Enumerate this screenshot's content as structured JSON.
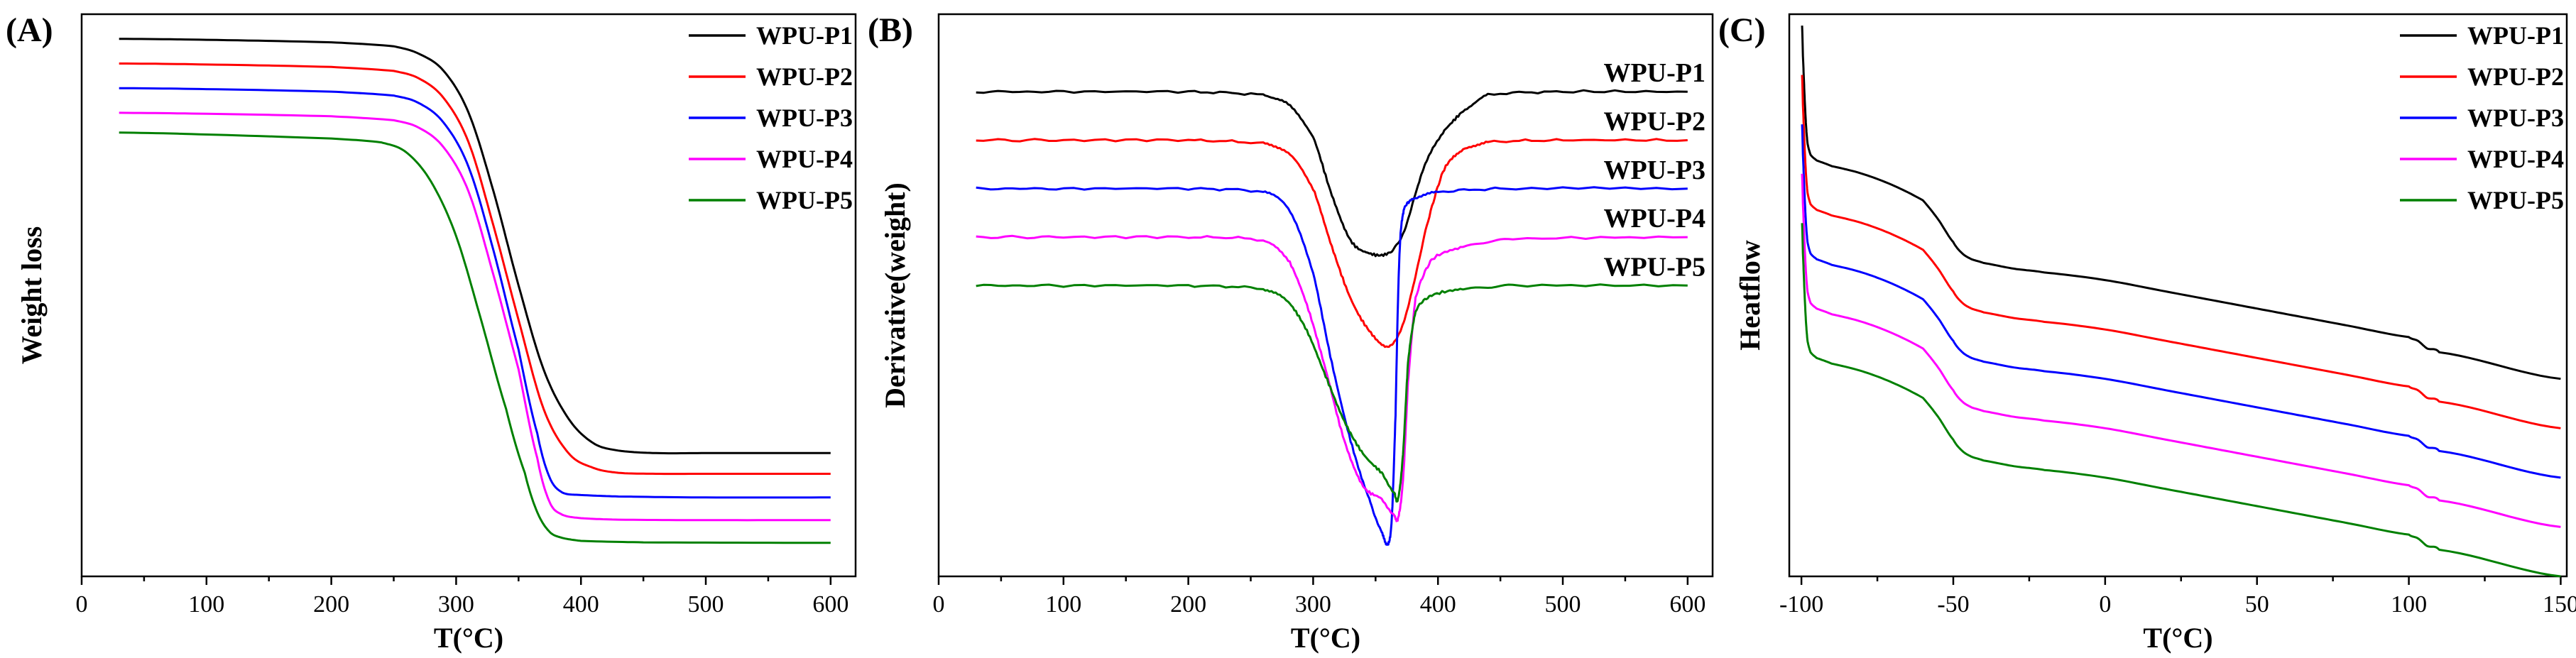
{
  "chart_data": [
    {
      "panel": "(A)",
      "type": "line",
      "xlabel": "T(°C)",
      "ylabel": "Weight loss",
      "xlim": [
        0,
        620
      ],
      "ylim": [
        -4,
        110
      ],
      "xticks": [
        0,
        100,
        200,
        300,
        400,
        500,
        600
      ],
      "xtick_labels": [
        "0",
        "100",
        "200",
        "300",
        "400",
        "500",
        "600"
      ],
      "legend": "top-right",
      "series": [
        {
          "name": "WPU-P1",
          "color": "#000000",
          "x": [
            30,
            100,
            200,
            250,
            270,
            290,
            310,
            330,
            350,
            370,
            390,
            410,
            430,
            460,
            500,
            600
          ],
          "y": [
            105,
            104.8,
            104.3,
            103.5,
            102,
            98.5,
            90,
            74,
            55,
            38,
            28,
            23,
            21.5,
            21,
            21,
            21
          ]
        },
        {
          "name": "WPU-P2",
          "color": "#ff0000",
          "x": [
            30,
            100,
            200,
            250,
            270,
            290,
            310,
            330,
            350,
            370,
            390,
            410,
            430,
            460,
            500,
            600
          ],
          "y": [
            100,
            99.8,
            99.3,
            98.5,
            97,
            93,
            84,
            67,
            48,
            30,
            21,
            18,
            17,
            16.8,
            16.8,
            16.8
          ]
        },
        {
          "name": "WPU-P3",
          "color": "#0000ff",
          "x": [
            30,
            100,
            200,
            250,
            270,
            290,
            310,
            330,
            350,
            365,
            375,
            385,
            400,
            430,
            500,
            600
          ],
          "y": [
            95,
            94.8,
            94.3,
            93.5,
            92,
            88,
            79,
            62,
            42,
            25,
            16,
            13,
            12.5,
            12.2,
            12,
            12
          ]
        },
        {
          "name": "WPU-P4",
          "color": "#ff00ff",
          "x": [
            30,
            100,
            200,
            250,
            270,
            290,
            310,
            330,
            350,
            365,
            375,
            385,
            400,
            430,
            500,
            600
          ],
          "y": [
            90,
            89.8,
            89.3,
            88.5,
            87,
            83,
            74,
            57,
            38,
            20,
            11,
            8.5,
            7.8,
            7.5,
            7.4,
            7.4
          ]
        },
        {
          "name": "WPU-P5",
          "color": "#008000",
          "x": [
            30,
            100,
            200,
            240,
            260,
            280,
            300,
            320,
            340,
            355,
            365,
            375,
            385,
            400,
            450,
            600
          ],
          "y": [
            86,
            85.6,
            84.8,
            84,
            82,
            76,
            65,
            48,
            30,
            17,
            9,
            5,
            3.8,
            3.2,
            2.9,
            2.8
          ]
        }
      ]
    },
    {
      "panel": "(B)",
      "type": "line",
      "xlabel": "T(°C)",
      "ylabel": "Derivative(weight)",
      "xlim": [
        0,
        620
      ],
      "ylim": [
        -7.5,
        1.2
      ],
      "xticks": [
        0,
        100,
        200,
        300,
        400,
        500,
        600
      ],
      "xtick_labels": [
        "0",
        "100",
        "200",
        "300",
        "400",
        "500",
        "600"
      ],
      "legend": "labels beside curves",
      "series": [
        {
          "name": "WPU-P1",
          "color": "#000000",
          "x": [
            30,
            100,
            200,
            260,
            280,
            300,
            315,
            330,
            345,
            360,
            372,
            385,
            395,
            405,
            420,
            440,
            500,
            600
          ],
          "y": [
            0,
            0,
            0,
            -0.05,
            -0.2,
            -0.7,
            -1.6,
            -2.3,
            -2.5,
            -2.5,
            -2.2,
            -1.4,
            -0.9,
            -0.6,
            -0.3,
            -0.05,
            0,
            0
          ]
        },
        {
          "name": "WPU-P2",
          "color": "#ff0000",
          "x": [
            30,
            100,
            200,
            260,
            280,
            300,
            315,
            330,
            345,
            360,
            370,
            380,
            392,
            405,
            420,
            440,
            500,
            600
          ],
          "y": [
            -0.75,
            -0.75,
            -0.75,
            -0.8,
            -0.95,
            -1.5,
            -2.4,
            -3.2,
            -3.7,
            -3.95,
            -3.7,
            -3.0,
            -2.0,
            -1.2,
            -0.9,
            -0.78,
            -0.75,
            -0.75
          ]
        },
        {
          "name": "WPU-P3",
          "color": "#0000ff",
          "x": [
            30,
            100,
            200,
            260,
            280,
            300,
            315,
            330,
            345,
            355,
            360,
            363,
            366,
            368,
            370,
            373,
            380,
            400,
            450,
            600
          ],
          "y": [
            -1.5,
            -1.5,
            -1.5,
            -1.55,
            -1.8,
            -2.8,
            -4.2,
            -5.4,
            -6.3,
            -6.8,
            -7.0,
            -6.6,
            -5.0,
            -3.2,
            -2.2,
            -1.8,
            -1.65,
            -1.55,
            -1.5,
            -1.5
          ]
        },
        {
          "name": "WPU-P4",
          "color": "#ff00ff",
          "x": [
            30,
            100,
            200,
            260,
            280,
            295,
            310,
            325,
            340,
            355,
            365,
            368,
            372,
            376,
            382,
            395,
            420,
            460,
            600
          ],
          "y": [
            -2.25,
            -2.25,
            -2.25,
            -2.3,
            -2.6,
            -3.3,
            -4.3,
            -5.4,
            -6.1,
            -6.3,
            -6.55,
            -6.6,
            -6.0,
            -4.5,
            -3.2,
            -2.6,
            -2.4,
            -2.28,
            -2.25
          ]
        },
        {
          "name": "WPU-P5",
          "color": "#008000",
          "x": [
            30,
            100,
            200,
            260,
            280,
            295,
            310,
            325,
            340,
            355,
            365,
            368,
            372,
            376,
            382,
            395,
            420,
            460,
            600
          ],
          "y": [
            -3.0,
            -3.0,
            -3.0,
            -3.05,
            -3.25,
            -3.7,
            -4.4,
            -5.1,
            -5.6,
            -5.9,
            -6.2,
            -6.3,
            -5.6,
            -4.2,
            -3.4,
            -3.15,
            -3.05,
            -3.0,
            -3.0
          ]
        }
      ],
      "curve_labels": [
        "WPU-P1",
        "WPU-P2",
        "WPU-P3",
        "WPU-P4",
        "WPU-P5"
      ]
    },
    {
      "panel": "(C)",
      "type": "line",
      "xlabel": "T(°C)",
      "ylabel": "Heatflow",
      "xlim": [
        -104,
        152
      ],
      "ylim": [
        -12.2,
        2.6
      ],
      "xticks": [
        -100,
        -50,
        0,
        50,
        100,
        150
      ],
      "xtick_labels": [
        "-100",
        "-50",
        "0",
        "50",
        "100",
        "150"
      ],
      "legend": "top-right",
      "series": [
        {
          "name": "WPU-P1",
          "color": "#000000",
          "offset": 0,
          "x": [
            -99.8,
            -99.5,
            -99,
            -98.5,
            -98,
            -97,
            -95,
            -90,
            -80,
            -70,
            -60,
            -55,
            -50,
            -47,
            -44,
            -40,
            -30,
            -20,
            0,
            20,
            40,
            60,
            80,
            100,
            103,
            106,
            110,
            150
          ],
          "y": [
            2.3,
            1.5,
            0.5,
            -0.3,
            -0.8,
            -1.1,
            -1.25,
            -1.4,
            -1.6,
            -1.9,
            -2.3,
            -2.8,
            -3.4,
            -3.7,
            -3.85,
            -3.95,
            -4.1,
            -4.2,
            -4.4,
            -4.7,
            -5.0,
            -5.3,
            -5.6,
            -5.9,
            -6.0,
            -6.2,
            -6.3,
            -7.0
          ]
        },
        {
          "name": "WPU-P2",
          "color": "#ff0000",
          "offset": -1.3,
          "x": [
            -99.8,
            -99.5,
            -99,
            -98.5,
            -98,
            -97,
            -95,
            -90,
            -80,
            -70,
            -60,
            -55,
            -50,
            -47,
            -44,
            -40,
            -30,
            -20,
            0,
            20,
            40,
            60,
            80,
            100,
            103,
            106,
            110,
            150
          ],
          "y": [
            2.3,
            1.5,
            0.5,
            -0.3,
            -0.8,
            -1.1,
            -1.25,
            -1.4,
            -1.6,
            -1.9,
            -2.3,
            -2.8,
            -3.4,
            -3.7,
            -3.85,
            -3.95,
            -4.1,
            -4.2,
            -4.4,
            -4.7,
            -5.0,
            -5.3,
            -5.6,
            -5.9,
            -6.0,
            -6.2,
            -6.3,
            -7.0
          ]
        },
        {
          "name": "WPU-P3",
          "color": "#0000ff",
          "offset": -2.6,
          "x": [
            -99.8,
            -99.5,
            -99,
            -98.5,
            -98,
            -97,
            -95,
            -90,
            -80,
            -70,
            -60,
            -55,
            -50,
            -47,
            -44,
            -40,
            -30,
            -20,
            0,
            20,
            40,
            60,
            80,
            100,
            103,
            106,
            110,
            150
          ],
          "y": [
            2.3,
            1.5,
            0.5,
            -0.3,
            -0.8,
            -1.1,
            -1.25,
            -1.4,
            -1.6,
            -1.9,
            -2.3,
            -2.8,
            -3.4,
            -3.7,
            -3.85,
            -3.95,
            -4.1,
            -4.2,
            -4.4,
            -4.7,
            -5.0,
            -5.3,
            -5.6,
            -5.9,
            -6.0,
            -6.2,
            -6.3,
            -7.0
          ]
        },
        {
          "name": "WPU-P4",
          "color": "#ff00ff",
          "offset": -3.9,
          "x": [
            -99.8,
            -99.5,
            -99,
            -98.5,
            -98,
            -97,
            -95,
            -90,
            -80,
            -70,
            -60,
            -55,
            -50,
            -47,
            -44,
            -40,
            -30,
            -20,
            0,
            20,
            40,
            60,
            80,
            100,
            103,
            106,
            110,
            150
          ],
          "y": [
            2.3,
            1.5,
            0.5,
            -0.3,
            -0.8,
            -1.1,
            -1.25,
            -1.4,
            -1.6,
            -1.9,
            -2.3,
            -2.8,
            -3.4,
            -3.7,
            -3.85,
            -3.95,
            -4.1,
            -4.2,
            -4.4,
            -4.7,
            -5.0,
            -5.3,
            -5.6,
            -5.9,
            -6.0,
            -6.2,
            -6.3,
            -7.0
          ]
        },
        {
          "name": "WPU-P5",
          "color": "#008000",
          "offset": -5.2,
          "x": [
            -99.8,
            -99.5,
            -99,
            -98.5,
            -98,
            -97,
            -95,
            -90,
            -80,
            -70,
            -60,
            -55,
            -50,
            -47,
            -44,
            -40,
            -30,
            -20,
            0,
            20,
            40,
            60,
            80,
            100,
            103,
            106,
            110,
            150
          ],
          "y": [
            2.3,
            1.5,
            0.5,
            -0.3,
            -0.8,
            -1.1,
            -1.25,
            -1.4,
            -1.6,
            -1.9,
            -2.3,
            -2.8,
            -3.4,
            -3.7,
            -3.85,
            -3.95,
            -4.1,
            -4.2,
            -4.4,
            -4.7,
            -5.0,
            -5.3,
            -5.6,
            -5.9,
            -6.0,
            -6.2,
            -6.3,
            -7.0
          ]
        }
      ]
    }
  ]
}
